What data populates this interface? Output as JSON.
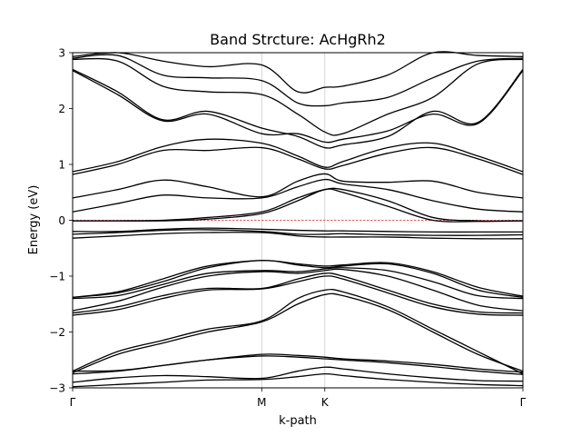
{
  "chart_data": {
    "type": "line",
    "title": "Band Strcture: AcHgRh2",
    "xlabel": "k-path",
    "ylabel": "Energy (eV)",
    "ylim": [
      -3,
      3
    ],
    "xlim": [
      0,
      1
    ],
    "yticks": [
      -3,
      -2,
      -1,
      0,
      1,
      2,
      3
    ],
    "ytick_labels": [
      "−3",
      "−2",
      "−1",
      "0",
      "1",
      "2",
      "3"
    ],
    "kpoints": [
      {
        "label": "Γ",
        "x": 0.0
      },
      {
        "label": "M",
        "x": 0.42
      },
      {
        "label": "K",
        "x": 0.56
      },
      {
        "label": "Γ",
        "x": 1.0
      }
    ],
    "grid": "vertical lines at high-symmetry points",
    "fermi_level": {
      "energy": 0,
      "color": "#d62728",
      "style": "dashed"
    },
    "line_color": "#000000",
    "bands_approx": [
      {
        "x": [
          0,
          0.1,
          0.2,
          0.3,
          0.42,
          0.5,
          0.56,
          0.6,
          0.7,
          0.8,
          0.9,
          1.0
        ],
        "y": [
          -2.98,
          -2.94,
          -2.9,
          -2.86,
          -2.85,
          -2.8,
          -2.75,
          -2.78,
          -2.85,
          -2.9,
          -2.94,
          -2.96
        ]
      },
      {
        "x": [
          0,
          0.1,
          0.2,
          0.3,
          0.42,
          0.5,
          0.56,
          0.6,
          0.7,
          0.8,
          0.9,
          1.0
        ],
        "y": [
          -2.9,
          -2.82,
          -2.78,
          -2.8,
          -2.83,
          -2.7,
          -2.63,
          -2.66,
          -2.75,
          -2.82,
          -2.87,
          -2.88
        ]
      },
      {
        "x": [
          0,
          0.1,
          0.2,
          0.3,
          0.42,
          0.5,
          0.56,
          0.6,
          0.7,
          0.8,
          0.9,
          1.0
        ],
        "y": [
          -2.75,
          -2.7,
          -2.6,
          -2.5,
          -2.43,
          -2.45,
          -2.48,
          -2.5,
          -2.55,
          -2.62,
          -2.7,
          -2.76
        ]
      },
      {
        "x": [
          0,
          0.1,
          0.2,
          0.3,
          0.42,
          0.5,
          0.56,
          0.6,
          0.7,
          0.8,
          0.9,
          1.0
        ],
        "y": [
          -2.7,
          -2.69,
          -2.6,
          -2.5,
          -2.4,
          -2.42,
          -2.45,
          -2.48,
          -2.52,
          -2.58,
          -2.66,
          -2.72
        ]
      },
      {
        "x": [
          0,
          0.1,
          0.2,
          0.3,
          0.42,
          0.5,
          0.56,
          0.6,
          0.7,
          0.8,
          0.9,
          1.0
        ],
        "y": [
          -2.73,
          -2.4,
          -2.2,
          -2.0,
          -1.82,
          -1.5,
          -1.33,
          -1.35,
          -1.6,
          -2.0,
          -2.4,
          -2.7
        ]
      },
      {
        "x": [
          0,
          0.1,
          0.2,
          0.3,
          0.42,
          0.5,
          0.56,
          0.6,
          0.7,
          0.8,
          0.9,
          1.0
        ],
        "y": [
          -2.7,
          -2.35,
          -2.15,
          -1.95,
          -1.8,
          -1.4,
          -1.25,
          -1.28,
          -1.55,
          -1.95,
          -2.35,
          -2.75
        ]
      },
      {
        "x": [
          0,
          0.1,
          0.2,
          0.3,
          0.42,
          0.5,
          0.56,
          0.6,
          0.7,
          0.8,
          0.9,
          1.0
        ],
        "y": [
          -1.7,
          -1.6,
          -1.4,
          -1.25,
          -1.23,
          -1.1,
          -1.0,
          -1.05,
          -1.3,
          -1.55,
          -1.68,
          -1.7
        ]
      },
      {
        "x": [
          0,
          0.1,
          0.2,
          0.3,
          0.42,
          0.5,
          0.56,
          0.6,
          0.7,
          0.8,
          0.9,
          1.0
        ],
        "y": [
          -1.66,
          -1.55,
          -1.35,
          -1.22,
          -1.22,
          -1.05,
          -0.95,
          -1.0,
          -1.25,
          -1.5,
          -1.64,
          -1.66
        ]
      },
      {
        "x": [
          0,
          0.1,
          0.2,
          0.3,
          0.42,
          0.5,
          0.56,
          0.6,
          0.7,
          0.8,
          0.9,
          1.0
        ],
        "y": [
          -1.62,
          -1.45,
          -1.2,
          -1.0,
          -0.92,
          -0.95,
          -0.9,
          -0.88,
          -1.0,
          -1.25,
          -1.52,
          -1.62
        ]
      },
      {
        "x": [
          0,
          0.1,
          0.2,
          0.3,
          0.42,
          0.5,
          0.56,
          0.6,
          0.7,
          0.8,
          0.9,
          1.0
        ],
        "y": [
          -1.4,
          -1.35,
          -1.15,
          -0.95,
          -0.9,
          -0.92,
          -0.87,
          -0.85,
          -0.9,
          -1.1,
          -1.35,
          -1.4
        ]
      },
      {
        "x": [
          0,
          0.1,
          0.2,
          0.3,
          0.42,
          0.5,
          0.56,
          0.6,
          0.7,
          0.8,
          0.9,
          1.0
        ],
        "y": [
          -1.38,
          -1.3,
          -1.1,
          -0.85,
          -0.72,
          -0.8,
          -0.85,
          -0.82,
          -0.78,
          -0.95,
          -1.25,
          -1.38
        ]
      },
      {
        "x": [
          0,
          0.1,
          0.2,
          0.3,
          0.42,
          0.5,
          0.56,
          0.6,
          0.7,
          0.8,
          0.9,
          1.0
        ],
        "y": [
          -1.38,
          -1.28,
          -1.05,
          -0.82,
          -0.72,
          -0.78,
          -0.82,
          -0.8,
          -0.76,
          -0.92,
          -1.2,
          -1.36
        ]
      },
      {
        "x": [
          0,
          0.1,
          0.2,
          0.3,
          0.42,
          0.5,
          0.56,
          0.6,
          0.7,
          0.8,
          0.9,
          1.0
        ],
        "y": [
          -0.32,
          -0.28,
          -0.24,
          -0.22,
          -0.22,
          -0.28,
          -0.3,
          -0.3,
          -0.3,
          -0.32,
          -0.33,
          -0.33
        ]
      },
      {
        "x": [
          0,
          0.1,
          0.2,
          0.3,
          0.42,
          0.5,
          0.56,
          0.6,
          0.7,
          0.8,
          0.9,
          1.0
        ],
        "y": [
          -0.25,
          -0.22,
          -0.18,
          -0.17,
          -0.2,
          -0.25,
          -0.25,
          -0.24,
          -0.26,
          -0.27,
          -0.27,
          -0.26
        ]
      },
      {
        "x": [
          0,
          0.1,
          0.2,
          0.3,
          0.42,
          0.5,
          0.56,
          0.6,
          0.7,
          0.8,
          0.9,
          1.0
        ],
        "y": [
          -0.2,
          -0.2,
          -0.16,
          -0.14,
          -0.16,
          -0.18,
          -0.19,
          -0.19,
          -0.2,
          -0.21,
          -0.21,
          -0.21
        ]
      },
      {
        "x": [
          0,
          0.1,
          0.2,
          0.3,
          0.42,
          0.5,
          0.56,
          0.6,
          0.7,
          0.8,
          0.9,
          1.0
        ],
        "y": [
          -0.01,
          -0.01,
          -0.01,
          0.02,
          0.12,
          0.35,
          0.55,
          0.5,
          0.25,
          0.0,
          -0.02,
          -0.01
        ]
      },
      {
        "x": [
          0,
          0.1,
          0.2,
          0.3,
          0.42,
          0.5,
          0.56,
          0.6,
          0.7,
          0.8,
          0.9,
          1.0
        ],
        "y": [
          -0.01,
          -0.01,
          0.0,
          0.05,
          0.15,
          0.4,
          0.55,
          0.55,
          0.35,
          0.05,
          -0.01,
          -0.01
        ]
      },
      {
        "x": [
          0,
          0.1,
          0.2,
          0.3,
          0.42,
          0.5,
          0.56,
          0.6,
          0.7,
          0.8,
          0.9,
          1.0
        ],
        "y": [
          0.15,
          0.3,
          0.45,
          0.4,
          0.4,
          0.6,
          0.73,
          0.65,
          0.55,
          0.35,
          0.2,
          0.15
        ]
      },
      {
        "x": [
          0,
          0.1,
          0.2,
          0.3,
          0.42,
          0.5,
          0.56,
          0.6,
          0.7,
          0.8,
          0.9,
          1.0
        ],
        "y": [
          0.4,
          0.55,
          0.72,
          0.6,
          0.42,
          0.7,
          0.83,
          0.7,
          0.68,
          0.7,
          0.5,
          0.4
        ]
      },
      {
        "x": [
          0,
          0.1,
          0.2,
          0.3,
          0.42,
          0.5,
          0.56,
          0.6,
          0.7,
          0.8,
          0.9,
          1.0
        ],
        "y": [
          0.82,
          1.0,
          1.25,
          1.25,
          1.3,
          1.1,
          0.92,
          0.98,
          1.2,
          1.3,
          1.1,
          0.82
        ]
      },
      {
        "x": [
          0,
          0.1,
          0.2,
          0.3,
          0.42,
          0.5,
          0.56,
          0.6,
          0.7,
          0.8,
          0.9,
          1.0
        ],
        "y": [
          0.87,
          1.05,
          1.32,
          1.45,
          1.38,
          1.15,
          0.95,
          1.05,
          1.3,
          1.38,
          1.15,
          0.87
        ]
      },
      {
        "x": [
          0,
          0.1,
          0.2,
          0.3,
          0.42,
          0.5,
          0.56,
          0.6,
          0.7,
          0.8,
          0.9,
          1.0
        ],
        "y": [
          2.7,
          2.3,
          1.8,
          1.95,
          1.65,
          1.5,
          1.3,
          1.35,
          1.5,
          1.95,
          1.75,
          2.7
        ]
      },
      {
        "x": [
          0,
          0.1,
          0.2,
          0.3,
          0.42,
          0.5,
          0.56,
          0.6,
          0.7,
          0.8,
          0.9,
          1.0
        ],
        "y": [
          2.68,
          2.25,
          1.78,
          1.9,
          1.55,
          1.55,
          1.4,
          1.45,
          1.6,
          1.9,
          1.73,
          2.68
        ]
      },
      {
        "x": [
          0,
          0.1,
          0.2,
          0.3,
          0.42,
          0.5,
          0.56,
          0.6,
          0.7,
          0.8,
          0.9,
          1.0
        ],
        "y": [
          2.88,
          2.85,
          2.4,
          2.3,
          2.25,
          1.9,
          1.58,
          1.55,
          1.9,
          2.2,
          2.8,
          2.88
        ]
      },
      {
        "x": [
          0,
          0.1,
          0.2,
          0.3,
          0.42,
          0.5,
          0.56,
          0.6,
          0.7,
          0.8,
          0.9,
          1.0
        ],
        "y": [
          2.9,
          2.95,
          2.6,
          2.55,
          2.5,
          2.1,
          2.05,
          2.1,
          2.2,
          2.55,
          2.85,
          2.9
        ]
      },
      {
        "x": [
          0,
          0.1,
          0.2,
          0.3,
          0.42,
          0.5,
          0.56,
          0.6,
          0.7,
          0.8,
          0.9,
          1.0
        ],
        "y": [
          2.93,
          3.0,
          2.85,
          2.75,
          2.78,
          2.3,
          2.38,
          2.4,
          2.6,
          3.0,
          2.95,
          2.93
        ]
      }
    ]
  }
}
